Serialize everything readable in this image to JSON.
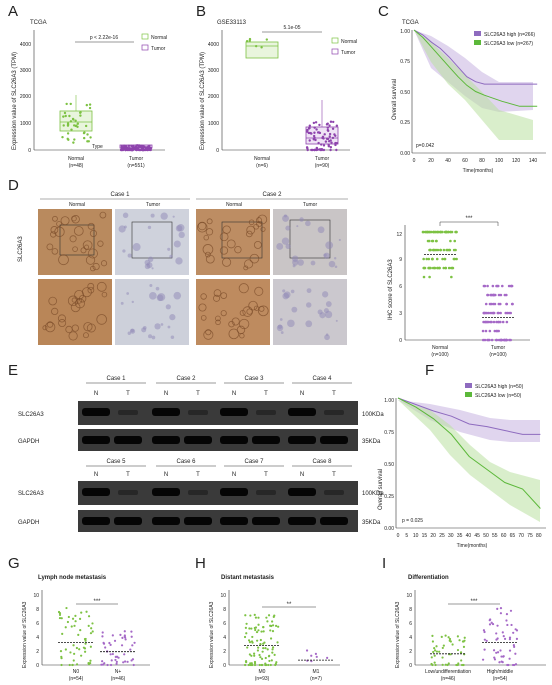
{
  "panels": {
    "A": {
      "letter": "A",
      "subtitle": "TCGA",
      "ylabel": "Expression value of SLC26A3 (TPM)",
      "yticks": [
        "0",
        "1000",
        "2000",
        "3000",
        "4000"
      ],
      "pvalue": "p < 2.22e-16",
      "legend": [
        "Normal",
        "Tumor"
      ],
      "legend_title": "Type",
      "groups": [
        {
          "name": "Normal",
          "n": "(n=48)"
        },
        {
          "name": "Tumor",
          "n": "(n=551)"
        }
      ],
      "colors": {
        "normal": "#7dc243",
        "tumor": "#8e44ad"
      }
    },
    "B": {
      "letter": "B",
      "subtitle": "GSE33113",
      "ylabel": "Expression value of SLC26A3 (TPM)",
      "yticks": [
        "0",
        "1000",
        "2000",
        "3000",
        "4000"
      ],
      "pvalue": "5.1e-05",
      "legend": [
        "Normal",
        "Tumor"
      ],
      "groups": [
        {
          "name": "Normal",
          "n": "(n=6)"
        },
        {
          "name": "Tumor",
          "n": "(n=90)"
        }
      ]
    },
    "C": {
      "letter": "C",
      "subtitle": "TCGA",
      "ylabel": "Overall survival",
      "xlabel": "Time(months)",
      "yticks": [
        "0.00",
        "0.25",
        "0.50",
        "0.75",
        "1.00"
      ],
      "xticks": [
        "0",
        "20",
        "40",
        "60",
        "80",
        "100",
        "120",
        "140"
      ],
      "legend": [
        "SLC26A3 high (n=266)",
        "SLC26A3 low (n=267)"
      ],
      "pvalue": "p=0.042"
    },
    "D": {
      "letter": "D",
      "cases": [
        "Case 1",
        "Case 2"
      ],
      "tissue": [
        "Normal",
        "Tumor",
        "Normal",
        "Tumor"
      ],
      "rowlabel": "SLC26A3",
      "ylabel": "IHC score of SLC26A3",
      "yticks": [
        "0",
        "3",
        "6",
        "9",
        "12"
      ],
      "sig": "***",
      "groups": [
        {
          "name": "Normal",
          "n": "(n=100)"
        },
        {
          "name": "Tumor",
          "n": "(n=100)"
        }
      ]
    },
    "E": {
      "letter": "E",
      "cases_top": [
        "Case 1",
        "Case 2",
        "Case 3",
        "Case 4"
      ],
      "cases_bottom": [
        "Case 5",
        "Case 6",
        "Case 7",
        "Case 8"
      ],
      "lane_labels": [
        "N",
        "T"
      ],
      "rows": [
        "SLC26A3",
        "GAPDH"
      ],
      "sizes": [
        "100KDa",
        "35KDa"
      ]
    },
    "F": {
      "letter": "F",
      "ylabel": "Overall survival",
      "xlabel": "Time(months)",
      "yticks": [
        "0.00",
        "0.25",
        "0.50",
        "0.75",
        "1.00"
      ],
      "xticks": [
        "0",
        "5",
        "10",
        "15",
        "20",
        "25",
        "30",
        "35",
        "40",
        "45",
        "50",
        "55",
        "60",
        "65",
        "70",
        "75",
        "80"
      ],
      "legend": [
        "SLC26A3 high (n=50)",
        "SLC26A3 low (n=50)"
      ],
      "pvalue": "p = 0.025"
    },
    "G": {
      "letter": "G",
      "title": "Lymph node metastasis",
      "ylabel": "Expression value of SLC26A3",
      "yticks": [
        "0",
        "2",
        "4",
        "6",
        "8",
        "10"
      ],
      "sig": "***",
      "groups": [
        {
          "name": "N0",
          "n": "(n=54)"
        },
        {
          "name": "N+",
          "n": "(n=46)"
        }
      ]
    },
    "H": {
      "letter": "H",
      "title": "Distant metastasis",
      "ylabel": "Expression value of SLC26A3",
      "yticks": [
        "0",
        "2",
        "4",
        "6",
        "8",
        "10"
      ],
      "sig": "**",
      "groups": [
        {
          "name": "M0",
          "n": "(n=93)"
        },
        {
          "name": "M1",
          "n": "(n=7)"
        }
      ]
    },
    "I": {
      "letter": "I",
      "title": "Differentiation",
      "ylabel": "Expression value of SLC26A3",
      "yticks": [
        "0",
        "2",
        "4",
        "6",
        "8",
        "10"
      ],
      "sig": "***",
      "groups": [
        {
          "name": "Low/undifferentiation",
          "n": "(n=46)"
        },
        {
          "name": "High/middle",
          "n": "(n=54)"
        }
      ]
    }
  },
  "chart_data": [
    {
      "panel": "A",
      "type": "scatter",
      "categories": [
        "Normal",
        "Tumor"
      ],
      "medians": [
        1000,
        60
      ],
      "q1": [
        700,
        20
      ],
      "q3": [
        1400,
        130
      ],
      "ylim": [
        0,
        4500
      ]
    },
    {
      "panel": "B",
      "type": "scatter",
      "categories": [
        "Normal",
        "Tumor"
      ],
      "medians": [
        4100,
        500
      ],
      "q1": [
        3800,
        200
      ],
      "q3": [
        4200,
        800
      ],
      "ylim": [
        0,
        4500
      ]
    },
    {
      "panel": "C",
      "type": "line",
      "series": [
        {
          "name": "SLC26A3 high (n=266)",
          "x": [
            0,
            10,
            20,
            30,
            40,
            50,
            60,
            70,
            80,
            100,
            120,
            140
          ],
          "y": [
            1.0,
            0.96,
            0.9,
            0.85,
            0.78,
            0.7,
            0.62,
            0.58,
            0.56,
            0.56,
            0.56,
            0.56
          ]
        },
        {
          "name": "SLC26A3 low (n=267)",
          "x": [
            0,
            10,
            20,
            30,
            40,
            50,
            60,
            70,
            80,
            100,
            120,
            140
          ],
          "y": [
            1.0,
            0.94,
            0.86,
            0.78,
            0.7,
            0.62,
            0.55,
            0.5,
            0.47,
            0.42,
            0.38,
            0.38
          ]
        }
      ],
      "xlim": [
        0,
        150
      ],
      "ylim": [
        0,
        1
      ]
    },
    {
      "panel": "D",
      "type": "scatter",
      "categories": [
        "Normal",
        "Tumor"
      ],
      "means": [
        9.5,
        2.5
      ],
      "ylim": [
        0,
        12
      ]
    },
    {
      "panel": "F",
      "type": "line",
      "series": [
        {
          "name": "SLC26A3 high (n=50)",
          "x": [
            0,
            10,
            20,
            30,
            40,
            50,
            60,
            70,
            80
          ],
          "y": [
            1.0,
            0.95,
            0.9,
            0.86,
            0.8,
            0.78,
            0.75,
            0.72,
            0.72
          ]
        },
        {
          "name": "SLC26A3 low (n=50)",
          "x": [
            0,
            10,
            20,
            30,
            40,
            50,
            60,
            70,
            80
          ],
          "y": [
            1.0,
            0.93,
            0.84,
            0.72,
            0.55,
            0.45,
            0.35,
            0.3,
            0.15
          ]
        }
      ],
      "xlim": [
        0,
        82
      ],
      "ylim": [
        0,
        1
      ]
    },
    {
      "panel": "G",
      "type": "scatter",
      "categories": [
        "N0",
        "N+"
      ],
      "means": [
        3.2,
        1.9
      ],
      "ylim": [
        0,
        10
      ]
    },
    {
      "panel": "H",
      "type": "scatter",
      "categories": [
        "M0",
        "M1"
      ],
      "means": [
        2.8,
        0.7
      ],
      "ylim": [
        0,
        10
      ]
    },
    {
      "panel": "I",
      "type": "scatter",
      "categories": [
        "Low/undifferentiation",
        "High/middle"
      ],
      "means": [
        1.6,
        3.2
      ],
      "ylim": [
        0,
        10
      ]
    }
  ]
}
